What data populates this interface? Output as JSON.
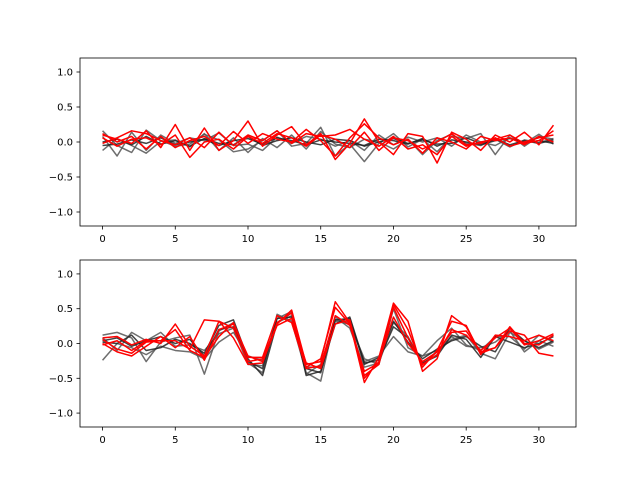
{
  "chart_data": [
    {
      "type": "line",
      "title": "",
      "xlabel": "",
      "ylabel": "",
      "xlim": [
        -1.55,
        32.55
      ],
      "ylim": [
        -1.2,
        1.2
      ],
      "xticks": [
        0,
        5,
        10,
        15,
        20,
        25,
        30
      ],
      "xtick_labels": [
        "0",
        "5",
        "10",
        "15",
        "20",
        "25",
        "30"
      ],
      "yticks": [
        -1.0,
        -0.5,
        0.0,
        0.5,
        1.0
      ],
      "ytick_labels": [
        "−1.0",
        "−0.5",
        "0.0",
        "0.5",
        "1.0"
      ],
      "grid": false,
      "x": [
        0,
        1,
        2,
        3,
        4,
        5,
        6,
        7,
        8,
        9,
        10,
        11,
        12,
        13,
        14,
        15,
        16,
        17,
        18,
        19,
        20,
        21,
        22,
        23,
        24,
        25,
        26,
        27,
        28,
        29,
        30,
        31
      ],
      "series": [
        {
          "color": "#555555",
          "values": [
            0.16,
            -0.05,
            -0.15,
            0.17,
            0.02,
            -0.06,
            -0.03,
            0.11,
            0.03,
            -0.14,
            -0.1,
            0.02,
            0.16,
            -0.06,
            -0.02,
            0.21,
            -0.2,
            -0.03,
            -0.28,
            -0.02,
            0.12,
            -0.07,
            0.04,
            -0.14,
            0.08,
            0.05,
            0.12,
            -0.18,
            0.1,
            -0.06,
            0.08,
            0.04
          ]
        },
        {
          "color": "#555555",
          "values": [
            0.08,
            -0.2,
            0.14,
            -0.12,
            0.1,
            -0.02,
            0.06,
            0.02,
            0.13,
            -0.05,
            -0.03,
            -0.12,
            0.07,
            -0.02,
            0.08,
            0.04,
            -0.06,
            0.02,
            -0.12,
            0.1,
            -0.04,
            0.07,
            0.0,
            0.06,
            -0.06,
            0.1,
            0.0,
            -0.05,
            0.06,
            -0.02,
            0.11,
            -0.03
          ]
        },
        {
          "color": "#555555",
          "values": [
            -0.12,
            0.05,
            -0.05,
            -0.16,
            0.01,
            0.03,
            -0.07,
            0.12,
            -0.12,
            0.06,
            -0.15,
            0.05,
            -0.08,
            0.1,
            -0.1,
            0.15,
            -0.03,
            -0.08,
            0.04,
            0.0,
            -0.1,
            0.04,
            -0.18,
            0.02,
            0.11,
            -0.02,
            -0.05,
            0.04,
            -0.07,
            0.03,
            -0.01,
            0.05
          ]
        },
        {
          "color": "#222222",
          "values": [
            -0.05,
            -0.03,
            0.03,
            -0.02,
            0.06,
            -0.04,
            0.0,
            0.04,
            -0.05,
            0.02,
            0.05,
            -0.03,
            0.06,
            0.02,
            -0.04,
            0.03,
            0.0,
            -0.02,
            -0.05,
            0.04,
            0.02,
            -0.03,
            0.05,
            -0.06,
            0.03,
            0.0,
            -0.04,
            0.02,
            0.05,
            -0.01,
            0.02,
            -0.02
          ]
        },
        {
          "color": "#222222",
          "values": [
            0.0,
            0.04,
            -0.04,
            0.08,
            -0.03,
            0.02,
            -0.06,
            0.05,
            -0.02,
            -0.04,
            0.08,
            -0.05,
            0.02,
            0.06,
            0.0,
            -0.04,
            0.04,
            0.02,
            -0.06,
            0.0,
            0.05,
            -0.02,
            0.03,
            -0.03,
            -0.02,
            0.06,
            -0.02,
            0.04,
            -0.04,
            0.02,
            -0.02,
            0.03
          ]
        },
        {
          "color": "#ff0000",
          "values": [
            0.1,
            0.04,
            -0.02,
            0.16,
            -0.08,
            0.25,
            -0.12,
            0.2,
            -0.12,
            0.02,
            0.3,
            -0.06,
            0.1,
            0.22,
            -0.04,
            0.12,
            -0.25,
            -0.02,
            0.33,
            0.0,
            -0.18,
            0.12,
            0.08,
            -0.3,
            0.14,
            0.04,
            -0.12,
            0.1,
            0.0,
            0.14,
            -0.04,
            0.24
          ]
        },
        {
          "color": "#ff0000",
          "values": [
            -0.02,
            0.06,
            0.16,
            0.12,
            0.02,
            -0.04,
            0.06,
            -0.08,
            0.14,
            -0.05,
            0.1,
            0.02,
            0.16,
            -0.02,
            0.12,
            0.08,
            0.1,
            0.18,
            0.04,
            -0.06,
            0.08,
            -0.1,
            -0.04,
            -0.18,
            0.08,
            -0.06,
            0.0,
            0.04,
            0.1,
            -0.02,
            0.02,
            0.16
          ]
        },
        {
          "color": "#ff0000",
          "values": [
            0.12,
            0.0,
            0.08,
            -0.1,
            0.08,
            -0.08,
            0.02,
            0.08,
            -0.05,
            0.15,
            -0.02,
            0.12,
            0.04,
            0.0,
            0.18,
            0.02,
            -0.2,
            0.06,
            0.26,
            0.06,
            -0.04,
            0.04,
            -0.16,
            0.06,
            0.0,
            -0.1,
            0.08,
            0.02,
            0.06,
            -0.04,
            0.08,
            0.0
          ]
        },
        {
          "color": "#ff0000",
          "values": [
            0.06,
            -0.06,
            0.04,
            0.06,
            -0.04,
            0.1,
            -0.22,
            0.0,
            0.04,
            -0.1,
            0.08,
            -0.02,
            0.12,
            0.06,
            -0.06,
            0.1,
            0.04,
            -0.08,
            0.14,
            -0.12,
            0.06,
            0.02,
            -0.1,
            0.0,
            0.12,
            -0.04,
            -0.02,
            0.06,
            -0.06,
            0.0,
            0.06,
            0.1
          ]
        }
      ]
    },
    {
      "type": "line",
      "title": "",
      "xlabel": "",
      "ylabel": "",
      "xlim": [
        -1.55,
        32.55
      ],
      "ylim": [
        -1.2,
        1.2
      ],
      "xticks": [
        0,
        5,
        10,
        15,
        20,
        25,
        30
      ],
      "xtick_labels": [
        "0",
        "5",
        "10",
        "15",
        "20",
        "25",
        "30"
      ],
      "yticks": [
        -1.0,
        -0.5,
        0.0,
        0.5,
        1.0
      ],
      "ytick_labels": [
        "−1.0",
        "−0.5",
        "0.0",
        "0.5",
        "1.0"
      ],
      "grid": false,
      "x": [
        0,
        1,
        2,
        3,
        4,
        5,
        6,
        7,
        8,
        9,
        10,
        11,
        12,
        13,
        14,
        15,
        16,
        17,
        18,
        19,
        20,
        21,
        22,
        23,
        24,
        25,
        26,
        27,
        28,
        29,
        30,
        31
      ],
      "series": [
        {
          "color": "#555555",
          "values": [
            0.12,
            0.16,
            0.08,
            -0.26,
            0.02,
            0.08,
            0.12,
            -0.44,
            0.18,
            0.3,
            -0.28,
            -0.42,
            0.42,
            0.32,
            -0.42,
            -0.54,
            0.38,
            0.22,
            -0.34,
            -0.28,
            0.3,
            0.1,
            -0.3,
            -0.12,
            0.06,
            0.12,
            -0.14,
            -0.22,
            0.16,
            0.04,
            -0.08,
            0.02
          ]
        },
        {
          "color": "#555555",
          "values": [
            0.08,
            -0.1,
            0.16,
            0.04,
            0.16,
            -0.04,
            -0.02,
            -0.1,
            0.14,
            0.22,
            -0.3,
            -0.32,
            0.36,
            0.46,
            -0.44,
            -0.3,
            0.32,
            0.28,
            -0.22,
            -0.3,
            0.5,
            -0.06,
            -0.18,
            0.04,
            0.22,
            -0.02,
            -0.1,
            0.1,
            0.1,
            -0.08,
            0.12,
            0.02
          ]
        },
        {
          "color": "#555555",
          "values": [
            -0.24,
            0.0,
            -0.06,
            -0.16,
            -0.04,
            -0.1,
            -0.12,
            -0.22,
            0.02,
            0.16,
            -0.18,
            -0.24,
            0.3,
            0.4,
            -0.34,
            -0.34,
            0.34,
            0.3,
            -0.26,
            -0.18,
            0.1,
            -0.12,
            -0.18,
            -0.1,
            0.1,
            -0.04,
            -0.06,
            0.02,
            0.18,
            -0.12,
            0.04,
            -0.04
          ]
        },
        {
          "color": "#222222",
          "values": [
            0.02,
            0.0,
            0.12,
            -0.1,
            -0.06,
            0.06,
            0.0,
            -0.14,
            0.26,
            0.34,
            -0.22,
            -0.46,
            0.3,
            0.44,
            -0.46,
            -0.4,
            0.28,
            0.38,
            -0.28,
            -0.24,
            0.24,
            0.08,
            -0.28,
            -0.18,
            0.12,
            0.06,
            -0.2,
            0.1,
            0.02,
            -0.06,
            0.0,
            0.1
          ]
        },
        {
          "color": "#222222",
          "values": [
            0.04,
            0.08,
            -0.04,
            0.04,
            0.1,
            0.0,
            0.06,
            -0.18,
            0.2,
            0.24,
            -0.26,
            -0.36,
            0.36,
            0.38,
            -0.36,
            -0.42,
            0.34,
            0.36,
            -0.3,
            -0.2,
            0.32,
            0.02,
            -0.22,
            -0.08,
            0.04,
            0.1,
            -0.04,
            -0.12,
            0.22,
            0.04,
            -0.06,
            0.04
          ]
        },
        {
          "color": "#ff0000",
          "values": [
            0.08,
            0.1,
            -0.02,
            0.06,
            0.0,
            0.28,
            -0.04,
            -0.18,
            0.32,
            0.22,
            -0.26,
            -0.22,
            0.28,
            0.48,
            -0.3,
            -0.26,
            0.6,
            0.3,
            -0.56,
            -0.2,
            0.58,
            0.32,
            -0.4,
            -0.22,
            0.4,
            0.24,
            -0.14,
            -0.06,
            0.18,
            0.12,
            -0.14,
            -0.18
          ]
        },
        {
          "color": "#ff0000",
          "values": [
            -0.02,
            0.04,
            -0.1,
            0.04,
            0.04,
            0.04,
            -0.08,
            0.34,
            0.32,
            0.08,
            -0.3,
            -0.28,
            0.3,
            0.44,
            -0.34,
            -0.22,
            0.52,
            0.28,
            -0.46,
            -0.3,
            0.56,
            0.2,
            -0.34,
            -0.1,
            0.32,
            0.26,
            -0.16,
            0.12,
            0.1,
            0.04,
            0.12,
            0.04
          ]
        },
        {
          "color": "#ff0000",
          "values": [
            0.06,
            -0.08,
            -0.14,
            0.02,
            0.04,
            0.2,
            -0.1,
            -0.2,
            0.1,
            0.3,
            -0.2,
            -0.2,
            0.4,
            0.3,
            -0.36,
            -0.32,
            0.4,
            0.26,
            -0.4,
            -0.28,
            0.52,
            0.08,
            -0.3,
            -0.16,
            0.2,
            0.12,
            -0.1,
            0.08,
            0.22,
            -0.02,
            0.04,
            0.14
          ]
        },
        {
          "color": "#ff0000",
          "values": [
            0.0,
            -0.12,
            -0.18,
            -0.04,
            0.1,
            -0.06,
            0.1,
            -0.24,
            0.2,
            0.28,
            -0.18,
            -0.26,
            0.26,
            0.36,
            -0.28,
            -0.36,
            0.28,
            0.34,
            -0.5,
            -0.26,
            0.38,
            0.0,
            -0.26,
            -0.12,
            0.16,
            0.18,
            -0.12,
            -0.06,
            0.24,
            0.0,
            -0.02,
            0.12
          ]
        }
      ]
    }
  ]
}
